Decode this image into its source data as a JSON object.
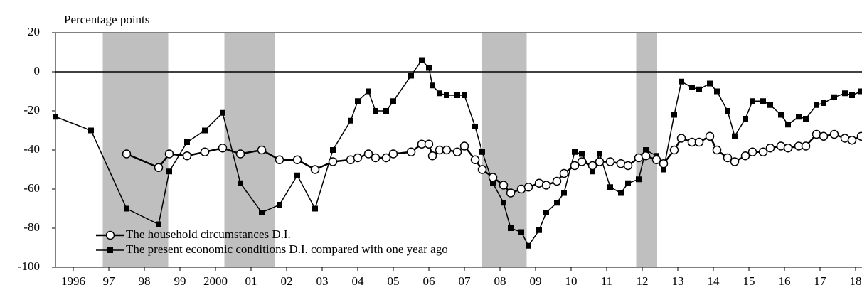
{
  "chart_data": {
    "type": "line",
    "y_axis_label": "Percentage points",
    "xlim": [
      1996.0,
      2018.68
    ],
    "ylim": [
      -100,
      20
    ],
    "yticks": [
      -100,
      -80,
      -60,
      -40,
      -20,
      0,
      20
    ],
    "xticks": [
      {
        "value": 1996.5,
        "label": "1996"
      },
      {
        "value": 1997.5,
        "label": "97"
      },
      {
        "value": 1998.5,
        "label": "98"
      },
      {
        "value": 1999.5,
        "label": "99"
      },
      {
        "value": 2000.5,
        "label": "2000"
      },
      {
        "value": 2001.5,
        "label": "01"
      },
      {
        "value": 2002.5,
        "label": "02"
      },
      {
        "value": 2003.5,
        "label": "03"
      },
      {
        "value": 2004.5,
        "label": "04"
      },
      {
        "value": 2005.5,
        "label": "05"
      },
      {
        "value": 2006.5,
        "label": "06"
      },
      {
        "value": 2007.5,
        "label": "07"
      },
      {
        "value": 2008.5,
        "label": "08"
      },
      {
        "value": 2009.5,
        "label": "09"
      },
      {
        "value": 2010.5,
        "label": "10"
      },
      {
        "value": 2011.5,
        "label": "11"
      },
      {
        "value": 2012.5,
        "label": "12"
      },
      {
        "value": 2013.5,
        "label": "13"
      },
      {
        "value": 2014.5,
        "label": "14"
      },
      {
        "value": 2015.5,
        "label": "15"
      },
      {
        "value": 2016.5,
        "label": "16"
      },
      {
        "value": 2017.5,
        "label": "17"
      },
      {
        "value": 2018.5,
        "label": "18"
      }
    ],
    "shaded_periods": [
      [
        1997.33,
        1999.17
      ],
      [
        2000.75,
        2002.17
      ],
      [
        2008.0,
        2009.25
      ],
      [
        2012.33,
        2012.92
      ]
    ],
    "shade_color": "#bfbfbf",
    "x": [
      1996.0,
      1997.0,
      1998.0,
      1998.9,
      1999.2,
      1999.7,
      2000.2,
      2000.7,
      2001.2,
      2001.8,
      2002.3,
      2002.8,
      2003.3,
      2003.8,
      2004.3,
      2004.5,
      2004.8,
      2005.0,
      2005.3,
      2005.5,
      2006.0,
      2006.3,
      2006.5,
      2006.6,
      2006.8,
      2007.0,
      2007.3,
      2007.5,
      2007.8,
      2008.0,
      2008.3,
      2008.6,
      2008.8,
      2009.1,
      2009.3,
      2009.6,
      2009.8,
      2010.1,
      2010.3,
      2010.6,
      2010.8,
      2011.1,
      2011.3,
      2011.6,
      2011.9,
      2012.1,
      2012.4,
      2012.6,
      2012.9,
      2013.1,
      2013.4,
      2013.6,
      2013.9,
      2014.1,
      2014.4,
      2014.6,
      2014.9,
      2015.1,
      2015.4,
      2015.6,
      2015.9,
      2016.1,
      2016.4,
      2016.6,
      2016.9,
      2017.1,
      2017.4,
      2017.6,
      2017.9,
      2018.2,
      2018.4,
      2018.66
    ],
    "series": [
      {
        "name": "The present economic conditions D.I. compared with one year ago",
        "color": "#000000",
        "marker": "square",
        "values": [
          -23,
          -30,
          -70,
          -78,
          -51,
          -36,
          -30,
          -21,
          -57,
          -72,
          -68,
          -53,
          -70,
          -40,
          -25,
          -15,
          -10,
          -20,
          -20,
          -15,
          -2,
          6,
          2,
          -7,
          -11,
          -12,
          -12,
          -12,
          -28,
          -41,
          -57,
          -67,
          -80,
          -82,
          -89,
          -81,
          -72,
          -67,
          -62,
          -41,
          -42,
          -51,
          -42,
          -59,
          -62,
          -57,
          -55,
          -40,
          -43,
          -50,
          -22,
          -5,
          -8,
          -9,
          -6,
          -10,
          -20,
          -33,
          -24,
          -15,
          -15,
          -17,
          -22,
          -27,
          -23,
          -24,
          -17,
          -16,
          -13,
          -11,
          -12,
          -10
        ]
      },
      {
        "name": "The household circumstances D.I.",
        "color": "#000000",
        "marker": "circle",
        "values": [
          null,
          null,
          -42,
          -49,
          -42,
          -43,
          -41,
          -39,
          -42,
          -40,
          -45,
          -45,
          -50,
          -46,
          -45,
          -44,
          -42,
          -44,
          -44,
          -42,
          -41,
          -37,
          -37,
          -43,
          -40,
          -40,
          -41,
          -38,
          -45,
          -50,
          -54,
          -58,
          -62,
          -60,
          -59,
          -57,
          -58,
          -56,
          -52,
          -48,
          -46,
          -48,
          -46,
          -46,
          -47,
          -48,
          -44,
          -43,
          -45,
          -47,
          -40,
          -34,
          -36,
          -36,
          -33,
          -40,
          -44,
          -46,
          -43,
          -41,
          -41,
          -39,
          -38,
          -39,
          -38,
          -38,
          -32,
          -33,
          -32,
          -34,
          -35,
          -33
        ]
      }
    ]
  }
}
